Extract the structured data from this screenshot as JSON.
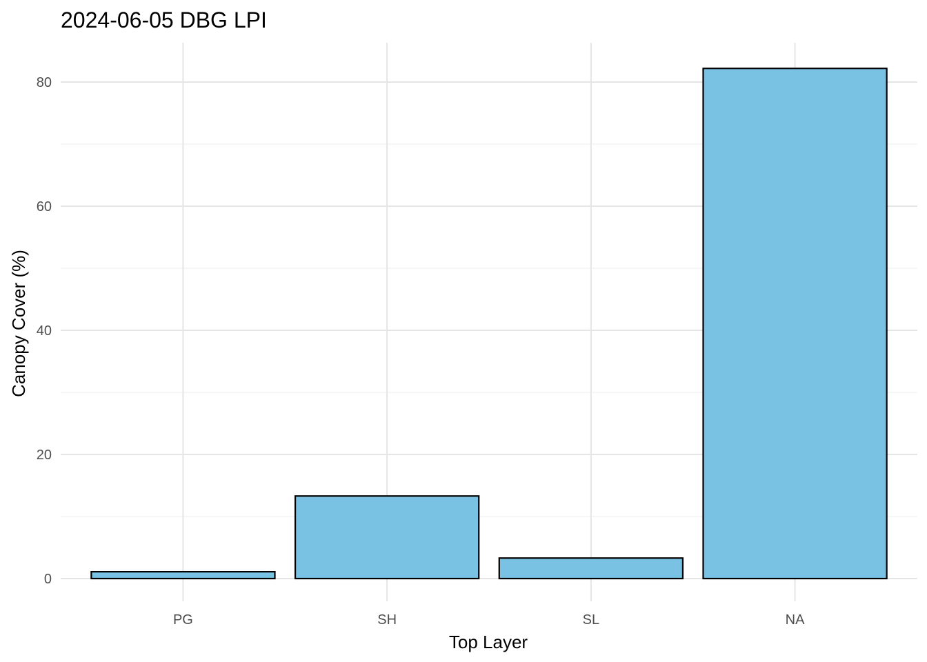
{
  "chart_data": {
    "type": "bar",
    "title": "2024-06-05 DBG LPI",
    "xlabel": "Top Layer",
    "ylabel": "Canopy Cover (%)",
    "categories": [
      "PG",
      "SH",
      "SL",
      "NA"
    ],
    "values": [
      1.1,
      13.3,
      3.3,
      82.2
    ],
    "ylim": [
      0,
      85
    ],
    "yticks": [
      0,
      20,
      40,
      60,
      80
    ],
    "grid": true,
    "legend": "none",
    "colors": {
      "bar_fill": "#7AC2E4",
      "bar_stroke": "#000000",
      "grid_major": "#E5E5E5",
      "grid_minor": "#F0F0F0"
    }
  }
}
